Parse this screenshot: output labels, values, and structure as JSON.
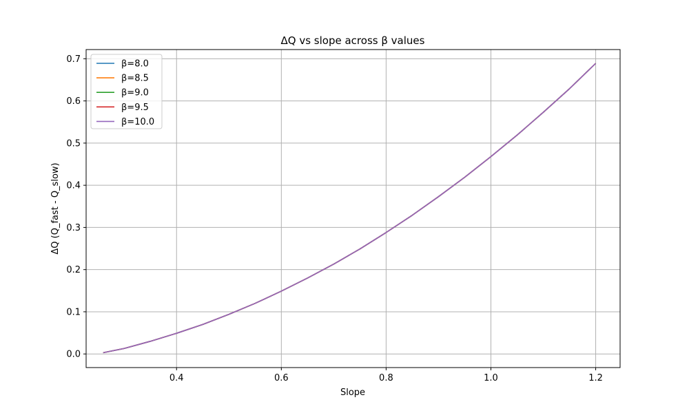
{
  "chart_data": {
    "type": "line",
    "title": "ΔQ vs slope across β values",
    "xlabel": "Slope",
    "ylabel": "ΔQ (Q_fast - Q_slow)",
    "xlim": [
      0.2274,
      1.2466
    ],
    "ylim": [
      -0.0323,
      0.7218
    ],
    "xticks": [
      0.4,
      0.6,
      0.8,
      1.0,
      1.2
    ],
    "xtick_labels": [
      "0.4",
      "0.6",
      "0.8",
      "1.0",
      "1.2"
    ],
    "yticks": [
      0.0,
      0.1,
      0.2,
      0.3,
      0.4,
      0.5,
      0.6,
      0.7
    ],
    "ytick_labels": [
      "0.0",
      "0.1",
      "0.2",
      "0.3",
      "0.4",
      "0.5",
      "0.6",
      "0.7"
    ],
    "grid": true,
    "legend_position": "top-left",
    "x": [
      0.26,
      0.3,
      0.35,
      0.4,
      0.45,
      0.5,
      0.55,
      0.6,
      0.65,
      0.7,
      0.75,
      0.8,
      0.85,
      0.9,
      0.95,
      1.0,
      1.05,
      1.1,
      1.15,
      1.2
    ],
    "series": [
      {
        "name": "β=8.0",
        "color": "#1f77b4",
        "values": [
          0.003,
          0.013,
          0.03,
          0.049,
          0.07,
          0.094,
          0.12,
          0.149,
          0.18,
          0.213,
          0.249,
          0.288,
          0.329,
          0.373,
          0.419,
          0.468,
          0.519,
          0.573,
          0.629,
          0.689
        ]
      },
      {
        "name": "β=8.5",
        "color": "#ff7f0e",
        "values": [
          0.003,
          0.013,
          0.03,
          0.049,
          0.07,
          0.094,
          0.12,
          0.149,
          0.18,
          0.213,
          0.249,
          0.288,
          0.329,
          0.373,
          0.419,
          0.468,
          0.519,
          0.573,
          0.629,
          0.689
        ]
      },
      {
        "name": "β=9.0",
        "color": "#2ca02c",
        "values": [
          0.003,
          0.013,
          0.03,
          0.049,
          0.07,
          0.094,
          0.12,
          0.149,
          0.18,
          0.213,
          0.249,
          0.288,
          0.329,
          0.373,
          0.419,
          0.468,
          0.519,
          0.573,
          0.629,
          0.689
        ]
      },
      {
        "name": "β=9.5",
        "color": "#d62728",
        "values": [
          0.003,
          0.013,
          0.03,
          0.049,
          0.07,
          0.094,
          0.12,
          0.149,
          0.18,
          0.213,
          0.249,
          0.288,
          0.329,
          0.373,
          0.419,
          0.468,
          0.519,
          0.573,
          0.629,
          0.689
        ]
      },
      {
        "name": "β=10.0",
        "color": "#9467bd",
        "values": [
          0.003,
          0.013,
          0.03,
          0.049,
          0.07,
          0.094,
          0.12,
          0.149,
          0.18,
          0.213,
          0.249,
          0.288,
          0.329,
          0.373,
          0.419,
          0.468,
          0.519,
          0.573,
          0.629,
          0.689
        ]
      }
    ]
  }
}
